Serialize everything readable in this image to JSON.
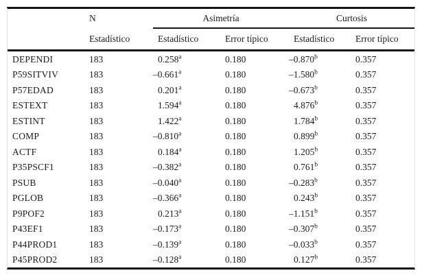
{
  "table": {
    "header": {
      "col_n_label": "N",
      "group_asimetria": "Asimetría",
      "group_curtosis": "Curtosis",
      "sub_estadistico": "Estadístico",
      "sub_error_tipico": "Error típico"
    },
    "superscripts": {
      "asimetria": "a",
      "curtosis": "b"
    },
    "rows": [
      {
        "label": "DEPENDI",
        "n": "183",
        "asim": "0.258",
        "asim_err": "0.180",
        "curt": "–0.870",
        "curt_err": "0.357"
      },
      {
        "label": "P59SITVIV",
        "n": "183",
        "asim": "–0.661",
        "asim_err": "0.180",
        "curt": "–1.580",
        "curt_err": "0.357"
      },
      {
        "label": "P57EDAD",
        "n": "183",
        "asim": "0.201",
        "asim_err": "0.180",
        "curt": "–0.673",
        "curt_err": "0.357"
      },
      {
        "label": "ESTEXT",
        "n": "183",
        "asim": "1.594",
        "asim_err": "0.180",
        "curt": "4.876",
        "curt_err": "0.357"
      },
      {
        "label": "ESTINT",
        "n": "183",
        "asim": "1.422",
        "asim_err": "0.180",
        "curt": "1.784",
        "curt_err": "0.357"
      },
      {
        "label": "COMP",
        "n": "183",
        "asim": "–0.810",
        "asim_err": "0.180",
        "curt": "0.899",
        "curt_err": "0.357"
      },
      {
        "label": "ACTF",
        "n": "183",
        "asim": "0.184",
        "asim_err": "0.180",
        "curt": "1.205",
        "curt_err": "0.357"
      },
      {
        "label": "P35PSCF1",
        "n": "183",
        "asim": "–0.382",
        "asim_err": "0.180",
        "curt": "0.761",
        "curt_err": "0.357"
      },
      {
        "label": "PSUB",
        "n": "183",
        "asim": "–0.040",
        "asim_err": "0.180",
        "curt": "–0.283",
        "curt_err": "0.357"
      },
      {
        "label": "PGLOB",
        "n": "183",
        "asim": "–0.366",
        "asim_err": "0.180",
        "curt": "0.243",
        "curt_err": "0.357"
      },
      {
        "label": "P9POF2",
        "n": "183",
        "asim": "0.213",
        "asim_err": "0.180",
        "curt": "–1.151",
        "curt_err": "0.357"
      },
      {
        "label": "P43EF1",
        "n": "183",
        "asim": "–0.173",
        "asim_err": "0.180",
        "curt": "–0.307",
        "curt_err": "0.357"
      },
      {
        "label": "P44PROD1",
        "n": "183",
        "asim": "–0.139",
        "asim_err": "0.180",
        "curt": "–0.033",
        "curt_err": "0.357"
      },
      {
        "label": "P45PROD2",
        "n": "183",
        "asim": "–0.128",
        "asim_err": "0.180",
        "curt": "0.127",
        "curt_err": "0.357"
      }
    ]
  },
  "colors": {
    "rule": "#141414",
    "text": "#1b1b1b",
    "side_border": "#e3e3e3",
    "background": "#ffffff"
  }
}
